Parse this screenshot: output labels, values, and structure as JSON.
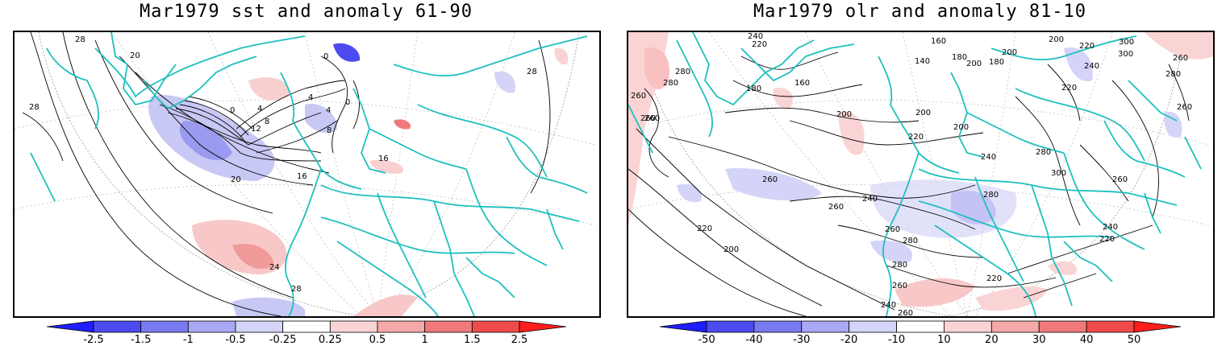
{
  "panels": {
    "left": {
      "title": "Mar1979 sst and anomaly 61-90",
      "contour_labels": [
        "28",
        "20",
        "28",
        "0",
        "4",
        "0",
        "8",
        "12",
        "4",
        "0",
        "4",
        "8",
        "16",
        "16",
        "20",
        "24",
        "28",
        "28"
      ],
      "colorbar": {
        "ticks": [
          "-2.5",
          "-1.5",
          "-1",
          "-0.5",
          "-0.25",
          "0.25",
          "0.5",
          "1",
          "1.5",
          "2.5"
        ],
        "colors": [
          "#1e1eff",
          "#4b4bf0",
          "#7a7af0",
          "#a8a8f5",
          "#d4d4f8",
          "#ffffff",
          "#fad4d4",
          "#f5a8a8",
          "#f07a7a",
          "#f04b4b",
          "#ff1e1e"
        ]
      }
    },
    "right": {
      "title": "Mar1979 olr and anomaly 81-10",
      "contour_labels": [
        "240",
        "220",
        "280",
        "160",
        "140",
        "180",
        "200",
        "200",
        "180",
        "200",
        "220",
        "300",
        "300",
        "280",
        "260",
        "260",
        "180",
        "160",
        "200",
        "260",
        "280",
        "220",
        "240",
        "260",
        "200",
        "200",
        "220",
        "260",
        "280",
        "300",
        "260",
        "240",
        "260",
        "240",
        "260",
        "280",
        "220",
        "200",
        "280",
        "260",
        "240",
        "220",
        "220",
        "260",
        "240",
        "260",
        "280"
      ],
      "colorbar": {
        "ticks": [
          "-50",
          "-40",
          "-30",
          "-20",
          "-10",
          "10",
          "20",
          "30",
          "40",
          "50"
        ],
        "colors": [
          "#1e1eff",
          "#4b4bf0",
          "#7a7af0",
          "#a8a8f5",
          "#d4d4f8",
          "#ffffff",
          "#fad4d4",
          "#f5a8a8",
          "#f07a7a",
          "#f04b4b",
          "#ff1e1e"
        ]
      }
    }
  },
  "colors": {
    "coastline": "#1fbfbf",
    "contour": "#000000",
    "positive_anomaly": "#f5a8a8",
    "negative_anomaly": "#a8a8f5",
    "grid": "#999999"
  }
}
